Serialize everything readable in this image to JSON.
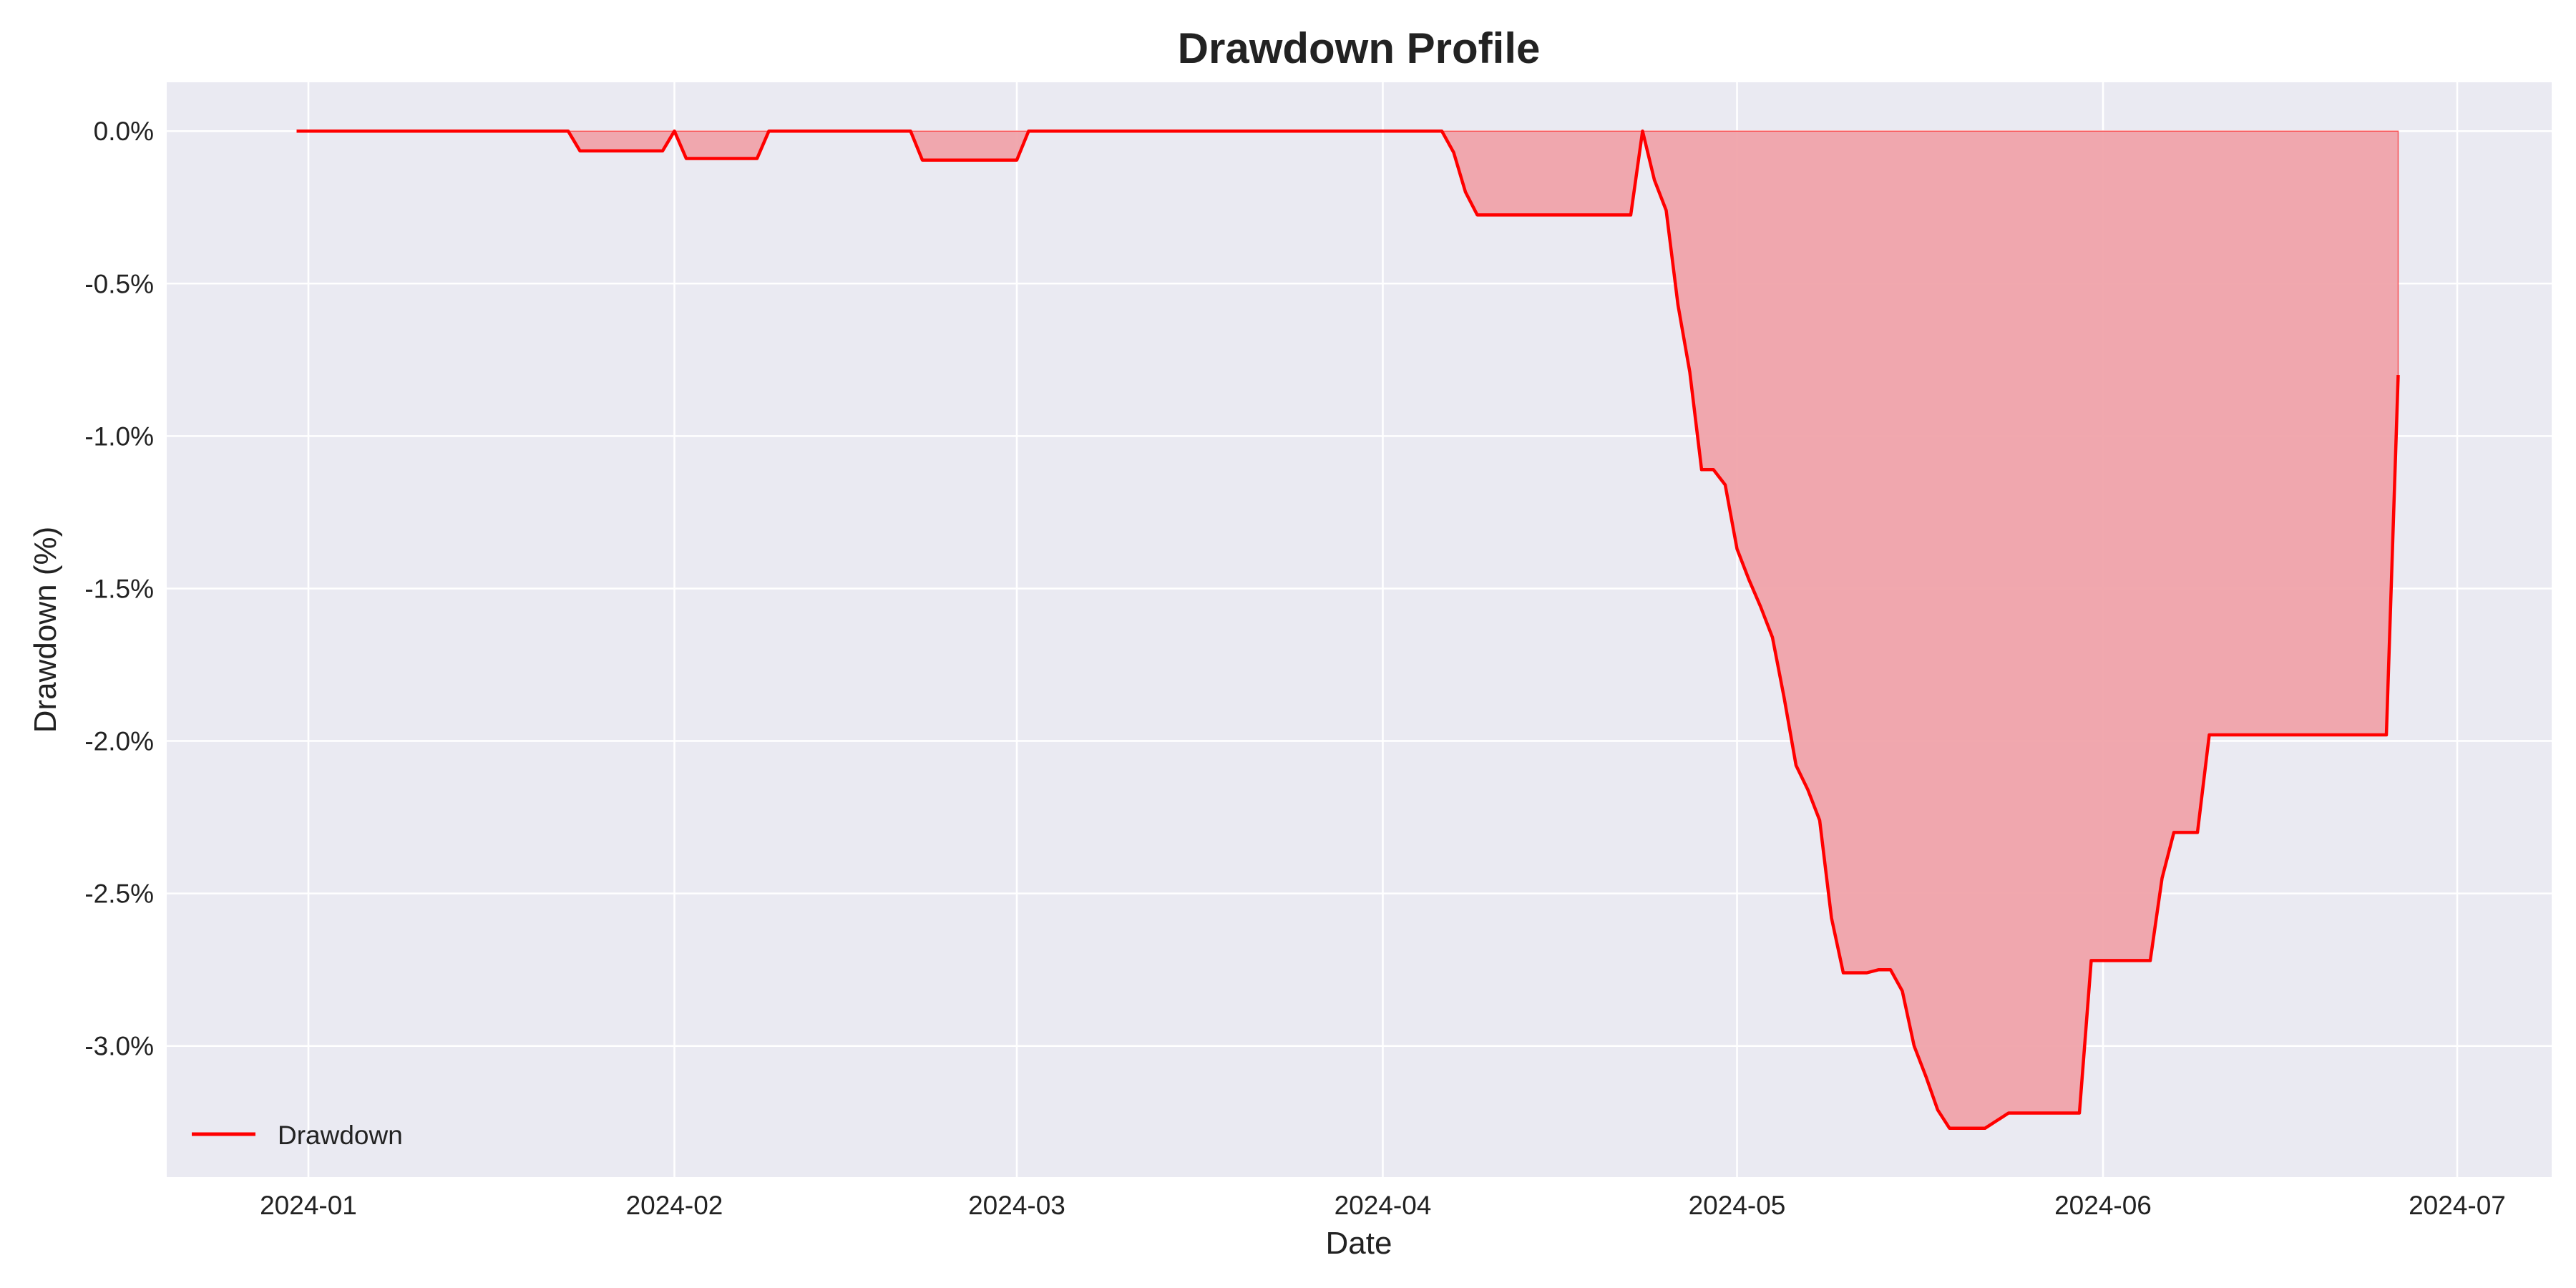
{
  "chart_data": {
    "type": "area",
    "title": "Drawdown Profile",
    "xlabel": "Date",
    "ylabel": "Drawdown (%)",
    "xlim": [
      "2023-12-20",
      "2024-07-09"
    ],
    "ylim": [
      -3.43,
      0.16
    ],
    "grid": true,
    "legend_position": "lower-left",
    "x_ticks": [
      {
        "date": "2024-01-01",
        "label": "2024-01"
      },
      {
        "date": "2024-02-01",
        "label": "2024-02"
      },
      {
        "date": "2024-03-01",
        "label": "2024-03"
      },
      {
        "date": "2024-04-01",
        "label": "2024-04"
      },
      {
        "date": "2024-05-01",
        "label": "2024-05"
      },
      {
        "date": "2024-06-01",
        "label": "2024-06"
      },
      {
        "date": "2024-07-01",
        "label": "2024-07"
      }
    ],
    "y_ticks": [
      {
        "value": 0.0,
        "label": "0.0%"
      },
      {
        "value": -0.5,
        "label": "-0.5%"
      },
      {
        "value": -1.0,
        "label": "-1.0%"
      },
      {
        "value": -1.5,
        "label": "-1.5%"
      },
      {
        "value": -2.0,
        "label": "-2.0%"
      },
      {
        "value": -2.5,
        "label": "-2.5%"
      },
      {
        "value": -3.0,
        "label": "-3.0%"
      }
    ],
    "colors": {
      "line": "#ff0000",
      "fill": "#f0a3aa",
      "plot_background": "#eaeaf2",
      "grid": "#ffffff"
    },
    "series": [
      {
        "name": "Drawdown",
        "points": [
          [
            "2023-12-31",
            0.0
          ],
          [
            "2024-01-23",
            0.0
          ],
          [
            "2024-01-24",
            -0.065
          ],
          [
            "2024-01-31",
            -0.065
          ],
          [
            "2024-02-01",
            0.0
          ],
          [
            "2024-02-02",
            -0.09
          ],
          [
            "2024-02-08",
            -0.09
          ],
          [
            "2024-02-09",
            0.0
          ],
          [
            "2024-02-21",
            0.0
          ],
          [
            "2024-02-22",
            -0.095
          ],
          [
            "2024-03-01",
            -0.095
          ],
          [
            "2024-03-02",
            0.0
          ],
          [
            "2024-04-06",
            0.0
          ],
          [
            "2024-04-07",
            -0.07
          ],
          [
            "2024-04-08",
            -0.2
          ],
          [
            "2024-04-09",
            -0.275
          ],
          [
            "2024-04-22",
            -0.275
          ],
          [
            "2024-04-23",
            0.0
          ],
          [
            "2024-04-24",
            -0.16
          ],
          [
            "2024-04-25",
            -0.26
          ],
          [
            "2024-04-26",
            -0.57
          ],
          [
            "2024-04-27",
            -0.79
          ],
          [
            "2024-04-28",
            -1.11
          ],
          [
            "2024-04-29",
            -1.11
          ],
          [
            "2024-04-30",
            -1.16
          ],
          [
            "2024-05-01",
            -1.37
          ],
          [
            "2024-05-02",
            -1.47
          ],
          [
            "2024-05-03",
            -1.56
          ],
          [
            "2024-05-04",
            -1.66
          ],
          [
            "2024-05-05",
            -1.86
          ],
          [
            "2024-05-06",
            -2.08
          ],
          [
            "2024-05-07",
            -2.16
          ],
          [
            "2024-05-08",
            -2.26
          ],
          [
            "2024-05-09",
            -2.58
          ],
          [
            "2024-05-10",
            -2.76
          ],
          [
            "2024-05-11",
            -2.76
          ],
          [
            "2024-05-12",
            -2.76
          ],
          [
            "2024-05-13",
            -2.75
          ],
          [
            "2024-05-14",
            -2.75
          ],
          [
            "2024-05-15",
            -2.82
          ],
          [
            "2024-05-16",
            -3.0
          ],
          [
            "2024-05-17",
            -3.1
          ],
          [
            "2024-05-18",
            -3.21
          ],
          [
            "2024-05-19",
            -3.27
          ],
          [
            "2024-05-22",
            -3.27
          ],
          [
            "2024-05-24",
            -3.22
          ],
          [
            "2024-05-30",
            -3.22
          ],
          [
            "2024-05-31",
            -2.72
          ],
          [
            "2024-06-05",
            -2.72
          ],
          [
            "2024-06-06",
            -2.45
          ],
          [
            "2024-06-07",
            -2.3
          ],
          [
            "2024-06-09",
            -2.3
          ],
          [
            "2024-06-10",
            -1.98
          ],
          [
            "2024-06-25",
            -1.98
          ],
          [
            "2024-06-26",
            -0.8
          ]
        ]
      }
    ]
  }
}
